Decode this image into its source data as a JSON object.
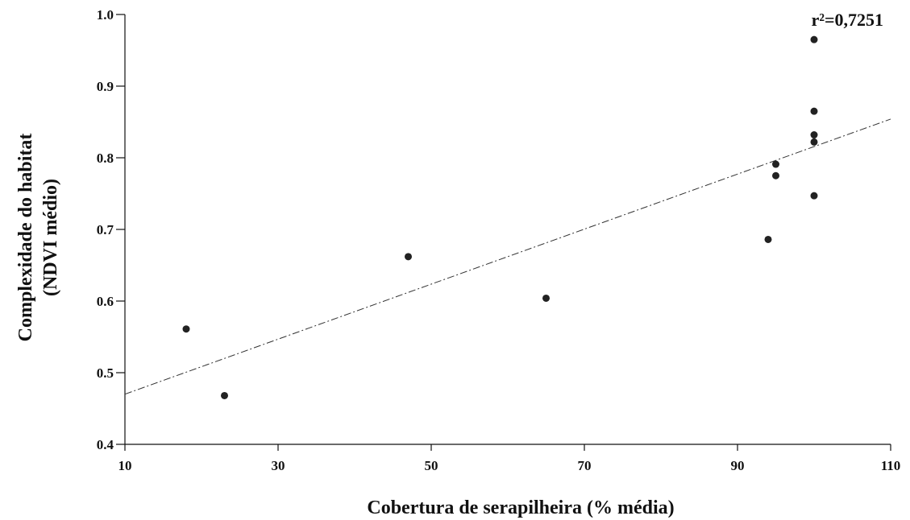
{
  "chart_data": {
    "type": "scatter",
    "xlabel": "Cobertura de serapilheira (% média)",
    "ylabel_lines": [
      "Complexidade do habitat",
      "(NDVI médio)"
    ],
    "xlim": [
      10,
      110
    ],
    "ylim": [
      0.4,
      1.0
    ],
    "x_ticks": [
      10,
      30,
      50,
      70,
      90,
      110
    ],
    "y_ticks": [
      0.4,
      0.5,
      0.6,
      0.7,
      0.8,
      0.9,
      1.0
    ],
    "x_tick_labels": [
      "10",
      "30",
      "50",
      "70",
      "90",
      "110"
    ],
    "y_tick_labels": [
      "0.4",
      "0.5",
      "0.6",
      "0.7",
      "0.8",
      "0.9",
      "1.0"
    ],
    "grid": false,
    "annotation": "r²=0,7251",
    "points": [
      {
        "x": 18,
        "y": 0.561
      },
      {
        "x": 23,
        "y": 0.468
      },
      {
        "x": 47,
        "y": 0.662
      },
      {
        "x": 65,
        "y": 0.604
      },
      {
        "x": 94,
        "y": 0.686
      },
      {
        "x": 95,
        "y": 0.791
      },
      {
        "x": 95,
        "y": 0.775
      },
      {
        "x": 100,
        "y": 0.965
      },
      {
        "x": 100,
        "y": 0.865
      },
      {
        "x": 100,
        "y": 0.832
      },
      {
        "x": 100,
        "y": 0.822
      },
      {
        "x": 100,
        "y": 0.747
      }
    ],
    "trendline": {
      "style": "dash-dot",
      "x": [
        10,
        110
      ],
      "y": [
        0.47,
        0.854
      ]
    },
    "colors": {
      "points": "#222222",
      "axes": "#111111",
      "trendline": "#333333"
    }
  }
}
